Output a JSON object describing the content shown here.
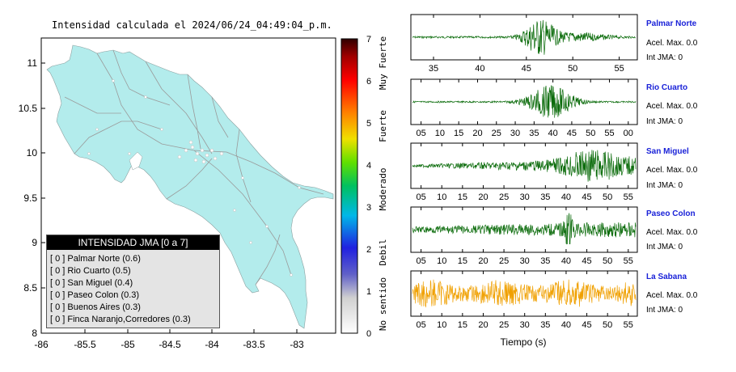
{
  "map": {
    "title": "Intensidad calculada el 2024/06/24_04:49:04_p.m.",
    "x_ticks": [
      "-86",
      "-85.5",
      "-85",
      "-84.5",
      "-84",
      "-83.5",
      "-83"
    ],
    "y_ticks": [
      "11",
      "10.5",
      "10",
      "9.5",
      "9",
      "8.5",
      "8"
    ],
    "land_color": "#b3ecec"
  },
  "legend": {
    "title": "INTENSIDAD JMA [0 a 7]",
    "items": [
      "[ 0 ]  Palmar Norte (0.6)",
      "[ 0 ]  Rio Cuarto (0.5)",
      "[ 0 ]  San Miguel (0.4)",
      "[ 0 ]  Paseo Colon (0.3)",
      "[ 0 ]  Buenos Aires (0.3)",
      "[ 0 ]  Finca Naranjo,Corredores (0.3)"
    ]
  },
  "colorbar": {
    "ticks": [
      "7",
      "6",
      "5",
      "4",
      "3",
      "2",
      "1",
      "0"
    ],
    "category_labels": [
      "Muy Fuerte",
      "Fuerte",
      "Moderado",
      "Debil",
      "No sentido"
    ]
  },
  "waveforms": {
    "xlabel": "Tiempo (s)",
    "stations": [
      {
        "name": "Palmar Norte",
        "acel": "Acel. Max. 0.0",
        "int": "Int JMA: 0",
        "color": "#0a6b0a",
        "ticks": [
          "35",
          "40",
          "45",
          "50",
          "55"
        ]
      },
      {
        "name": "Rio Cuarto",
        "acel": "Acel. Max. 0.0",
        "int": "Int JMA: 0",
        "color": "#0a6b0a",
        "ticks": [
          "05",
          "10",
          "15",
          "20",
          "25",
          "30",
          "35",
          "40",
          "45",
          "50",
          "55",
          "00"
        ]
      },
      {
        "name": "San Miguel",
        "acel": "Acel. Max. 0.0",
        "int": "Int JMA: 0",
        "color": "#0a6b0a",
        "ticks": [
          "05",
          "10",
          "15",
          "20",
          "25",
          "30",
          "35",
          "40",
          "45",
          "50",
          "55"
        ]
      },
      {
        "name": "Paseo Colon",
        "acel": "Acel. Max. 0.0",
        "int": "Int JMA: 0",
        "color": "#0a6b0a",
        "ticks": [
          "05",
          "10",
          "15",
          "20",
          "25",
          "30",
          "35",
          "40",
          "45",
          "50",
          "55"
        ]
      },
      {
        "name": "La Sabana",
        "acel": "Acel. Max. 0.0",
        "int": "Int JMA: 0",
        "color": "#f0a000",
        "ticks": [
          "05",
          "10",
          "15",
          "20",
          "25",
          "30",
          "35",
          "40",
          "45",
          "50",
          "55"
        ]
      }
    ]
  }
}
